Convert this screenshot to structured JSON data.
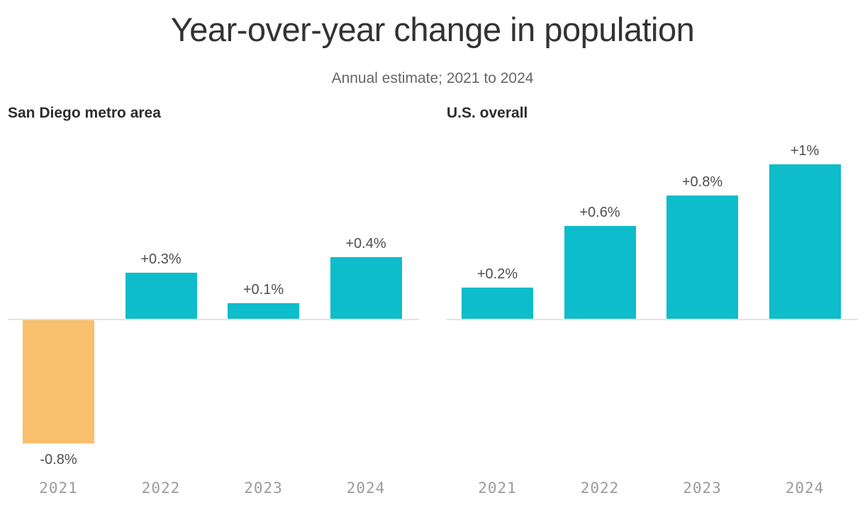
{
  "page": {
    "title": "Year-over-year change in population",
    "subtitle": "Annual estimate; 2021 to 2024"
  },
  "colors": {
    "positive_bar": "#0dbdcb",
    "negative_bar": "#f8c06c",
    "title_text": "#333333",
    "subtitle_text": "#676767",
    "panel_title_text": "#2d2d2d",
    "value_label_text": "#4f4f4f",
    "tick_text": "#9b9b9b",
    "baseline": "#e4e4e4",
    "background": "#ffffff"
  },
  "chart_data": [
    {
      "type": "bar",
      "title": "San Diego metro area",
      "categories": [
        "2021",
        "2022",
        "2023",
        "2024"
      ],
      "values": [
        -0.8,
        0.3,
        0.1,
        0.4
      ],
      "value_labels": [
        "-0.8%",
        "+0.3%",
        "+0.1%",
        "+0.4%"
      ],
      "bar_colors": [
        "#f8c06c",
        "#0dbdcb",
        "#0dbdcb",
        "#0dbdcb"
      ],
      "unit": "percent",
      "ylim": [
        -1.0,
        1.2
      ],
      "grid": false,
      "legend": false,
      "xlabel": "",
      "ylabel": ""
    },
    {
      "type": "bar",
      "title": "U.S. overall",
      "categories": [
        "2021",
        "2022",
        "2023",
        "2024"
      ],
      "values": [
        0.2,
        0.6,
        0.8,
        1.0
      ],
      "value_labels": [
        "+0.2%",
        "+0.6%",
        "+0.8%",
        "+1%"
      ],
      "bar_colors": [
        "#0dbdcb",
        "#0dbdcb",
        "#0dbdcb",
        "#0dbdcb"
      ],
      "unit": "percent",
      "ylim": [
        -1.0,
        1.2
      ],
      "grid": false,
      "legend": false,
      "xlabel": "",
      "ylabel": ""
    }
  ]
}
